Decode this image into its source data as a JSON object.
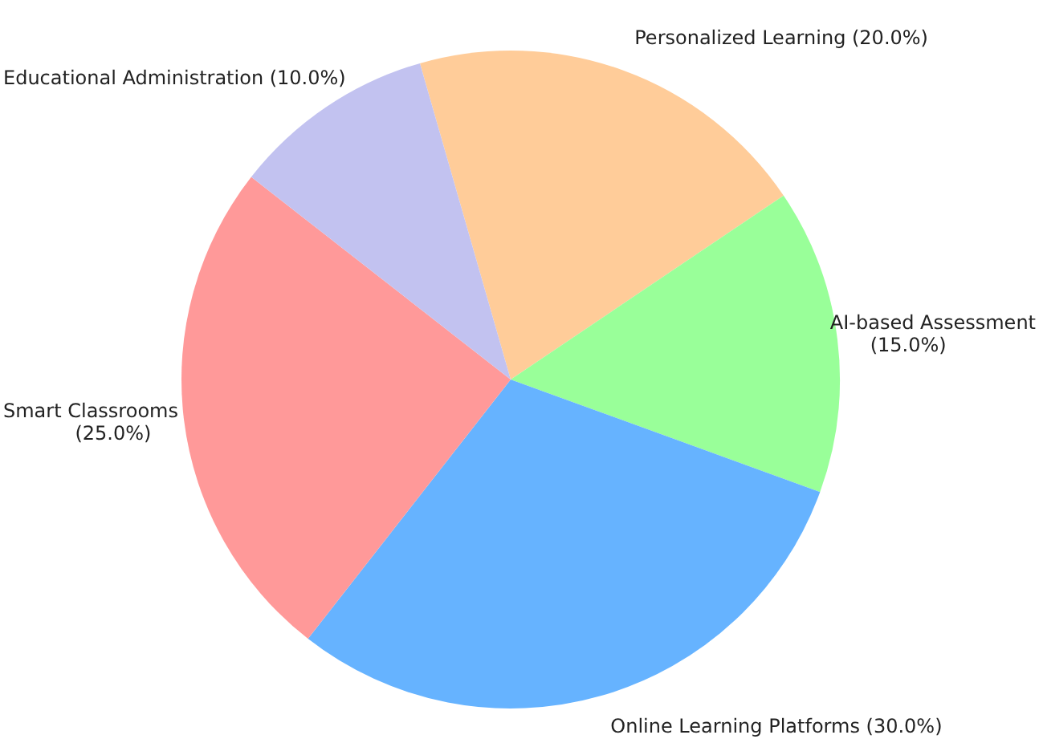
{
  "chart_data": {
    "type": "pie",
    "categories": [
      "Personalized Learning",
      "AI-based Assessment",
      "Online Learning Platforms",
      "Smart Classrooms",
      "Educational Administration"
    ],
    "values": [
      20,
      15,
      30,
      25,
      10
    ],
    "colors": [
      "#ffcc99",
      "#99ff99",
      "#66b3ff",
      "#ff9999",
      "#c2c2f0"
    ],
    "value_labels": [
      "(20.0%)",
      "(15.0%)",
      "(30.0%)",
      "(25.0%)",
      "(10.0%)"
    ],
    "legend": false
  }
}
